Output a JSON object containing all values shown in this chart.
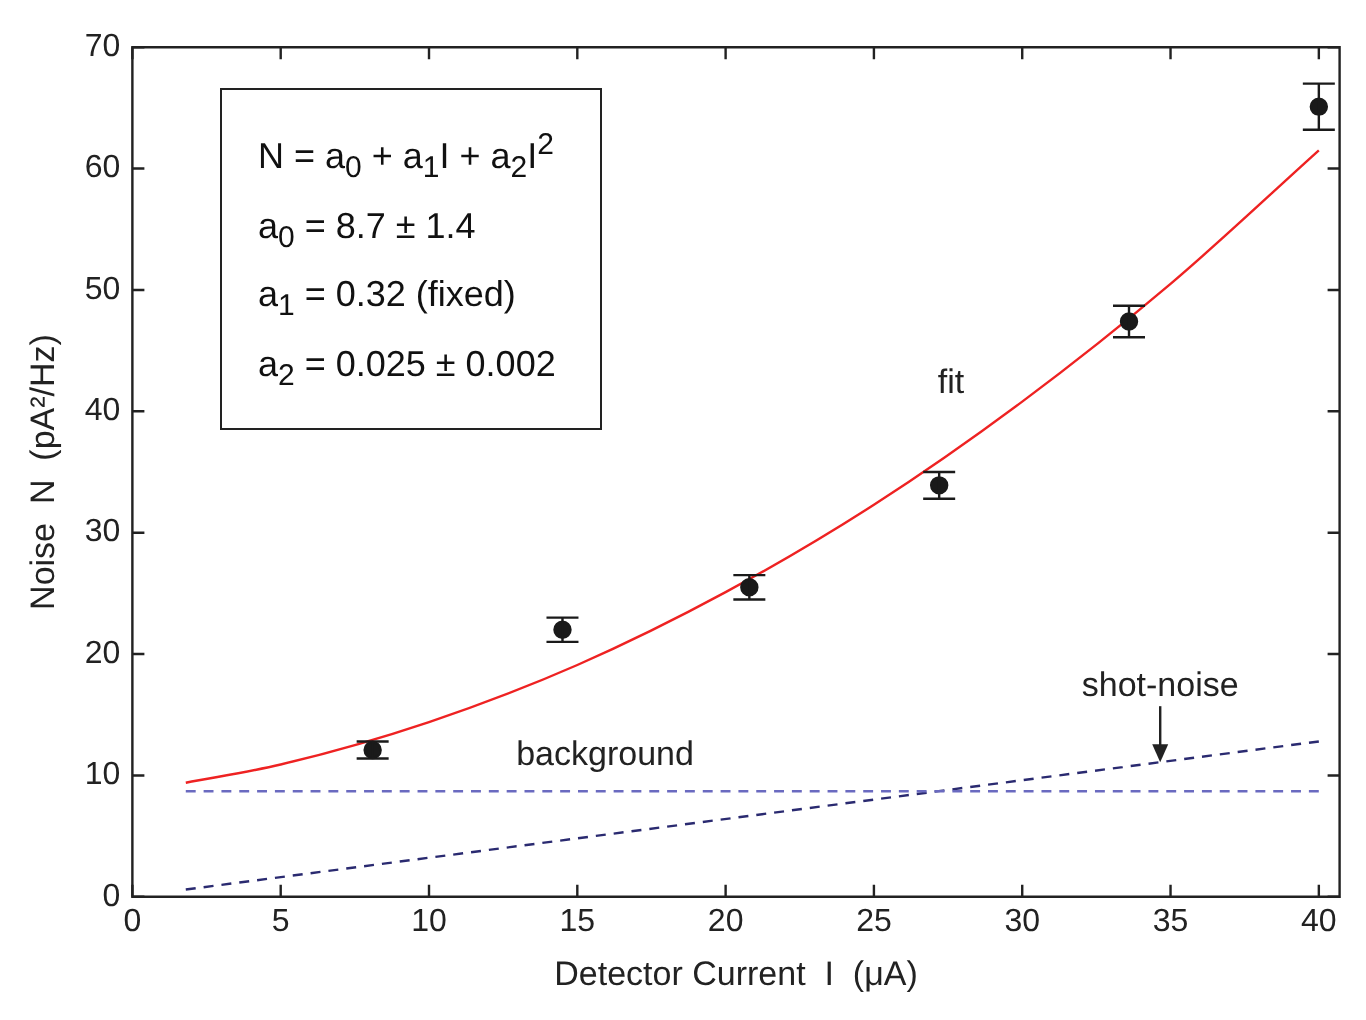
{
  "chart_data": {
    "type": "scatter",
    "xlabel": "Detector Current  I  (μA)",
    "ylabel": "Noise  N  (pA²/Hz)",
    "xlim": [
      0,
      40.7
    ],
    "ylim": [
      0,
      70
    ],
    "xticks": [
      0,
      5,
      10,
      15,
      20,
      25,
      30,
      35,
      40
    ],
    "yticks": [
      0,
      10,
      20,
      30,
      40,
      50,
      60,
      70
    ],
    "grid": false,
    "legend": false,
    "series": [
      {
        "type": "scatter",
        "color": "#1a1a1a",
        "marker": "circle",
        "x": [
          8.1,
          14.5,
          20.8,
          27.2,
          33.6,
          40
        ],
        "values": [
          12.1,
          22.0,
          25.5,
          33.9,
          47.4,
          65.1
        ],
        "errors": [
          0.7,
          1.0,
          1.0,
          1.1,
          1.3,
          1.9
        ]
      },
      {
        "type": "line",
        "name": "fit",
        "color": "#ee2222",
        "line_style": "solid",
        "x": [
          1.8,
          5,
          10,
          15,
          20,
          25,
          30,
          35,
          40
        ],
        "values": [
          9.4,
          10.9,
          14.4,
          19.1,
          25.1,
          32.3,
          40.8,
          50.5,
          61.5
        ]
      },
      {
        "type": "line",
        "name": "background",
        "color": "#6a6ac0",
        "line_style": "dashed",
        "x": [
          1.8,
          40
        ],
        "values": [
          8.7,
          8.7
        ]
      },
      {
        "type": "line",
        "name": "shot-noise",
        "color": "#2a2a70",
        "line_style": "dashed",
        "x": [
          1.8,
          40
        ],
        "values": [
          0.6,
          12.8
        ]
      }
    ],
    "annotations": [
      "N = a$_{0}$ + a$_{1}$I + a$_{2}$I$^{2}$",
      "a$_{0}$ = 8.7  ±  1.4",
      "a$_{1}$ = 0.32  (fixed)",
      "a$_{2}$ = 0.025  ±  0.002"
    ]
  }
}
